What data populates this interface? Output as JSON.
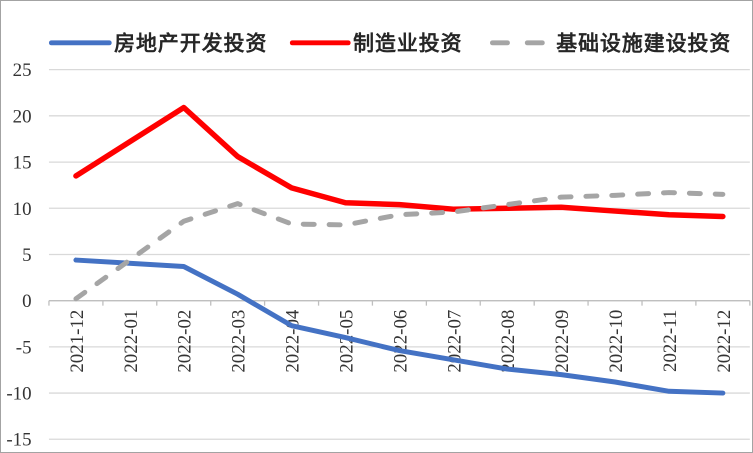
{
  "figure": {
    "background": "#FFFFFF",
    "border_color": "#A3A3A3"
  },
  "style": {
    "grid_color": "#D9D9D9",
    "axis_color": "#BFBFBF",
    "tick_text_color": "#333333",
    "legend_text_color": "#262626"
  },
  "legend": {
    "position": "top",
    "items": [
      {
        "label": "房地产开发投资",
        "color": "#4472C4",
        "style": "solid"
      },
      {
        "label": "制造业投资",
        "color": "#FF0000",
        "style": "solid"
      },
      {
        "label": "基础设施建设投资",
        "color": "#A5A5A5",
        "style": "dashed"
      }
    ]
  },
  "chart_data": {
    "type": "line",
    "title": "",
    "xlabel": "",
    "ylabel": "",
    "categories": [
      "2021-12",
      "2022-01",
      "2022-02",
      "2022-03",
      "2022-04",
      "2022-05",
      "2022-06",
      "2022-07",
      "2022-08",
      "2022-09",
      "2022-10",
      "2022-11",
      "2022-12"
    ],
    "series": [
      {
        "name": "房地产开发投资",
        "key": "real-estate-development-investment",
        "color": "#4472C4",
        "dash": false,
        "values": [
          4.4,
          null,
          3.7,
          0.7,
          -2.7,
          -4.0,
          -5.4,
          -6.4,
          -7.4,
          -8.0,
          -8.8,
          -9.8,
          -10.0
        ]
      },
      {
        "name": "制造业投资",
        "key": "manufacturing-investment",
        "color": "#FF0000",
        "dash": false,
        "values": [
          13.5,
          null,
          20.9,
          15.6,
          12.2,
          10.6,
          10.4,
          9.9,
          10.0,
          10.1,
          9.7,
          9.3,
          9.1
        ]
      },
      {
        "name": "基础设施建设投资",
        "key": "infrastructure-construction-investment",
        "color": "#A5A5A5",
        "dash": true,
        "values": [
          0.2,
          null,
          8.6,
          10.5,
          8.3,
          8.2,
          9.3,
          9.6,
          10.4,
          11.2,
          11.4,
          11.7,
          11.5
        ]
      }
    ],
    "ylim": [
      -15,
      25
    ],
    "yticks": [
      25,
      20,
      15,
      10,
      5,
      0,
      -5,
      -10,
      -15
    ],
    "grid": true,
    "legend_position": "top",
    "note_null_values": "2022-01 has no reported data point; lines connect 2021-12 directly to 2022-02"
  }
}
